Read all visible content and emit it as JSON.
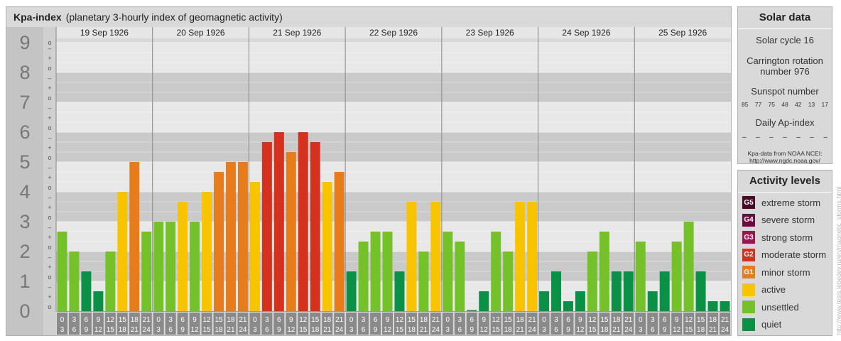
{
  "header": {
    "title": "Kpa-index",
    "subtitle": "(planetary 3-hourly index of geomagnetic activity)"
  },
  "chart_data": {
    "type": "bar",
    "title": "Kpa-index",
    "subtitle": "(planetary 3-hourly index of geomagnetic activity)",
    "ylim": [
      0,
      9
    ],
    "y_ticks": [
      "0",
      "1",
      "2",
      "3",
      "4",
      "5",
      "6",
      "7",
      "8",
      "9"
    ],
    "minor_ticks": [
      "o",
      "+",
      "–"
    ],
    "days": [
      "19 Sep 1926",
      "20 Sep 1926",
      "21 Sep 1926",
      "22 Sep 1926",
      "23 Sep 1926",
      "24 Sep 1926",
      "25 Sep 1926"
    ],
    "intervals": [
      [
        "0",
        "3"
      ],
      [
        "3",
        "6"
      ],
      [
        "6",
        "9"
      ],
      [
        "9",
        "12"
      ],
      [
        "12",
        "15"
      ],
      [
        "15",
        "18"
      ],
      [
        "18",
        "21"
      ],
      [
        "21",
        "24"
      ]
    ],
    "values": [
      [
        2.667,
        2.0,
        1.333,
        0.667,
        2.0,
        4.0,
        5.0,
        2.667
      ],
      [
        3.0,
        3.0,
        3.667,
        3.0,
        4.0,
        4.667,
        5.0,
        5.0
      ],
      [
        4.333,
        5.667,
        6.0,
        5.333,
        6.0,
        5.667,
        4.333,
        4.667
      ],
      [
        1.333,
        2.333,
        2.667,
        2.667,
        1.333,
        3.667,
        2.0,
        3.667
      ],
      [
        2.667,
        2.333,
        0.0,
        0.667,
        2.667,
        2.0,
        3.667,
        3.667
      ],
      [
        0.667,
        1.333,
        0.333,
        0.667,
        2.0,
        2.667,
        1.333,
        1.333
      ],
      [
        2.333,
        0.667,
        1.333,
        2.333,
        3.0,
        1.333,
        0.333,
        0.333
      ]
    ],
    "colors": {
      "quiet": "#0a9146",
      "unsettled": "#74c12a",
      "active": "#f8c400",
      "minor_storm": "#e67c1b",
      "moderate_storm": "#d5311f",
      "strong_storm": "#a1134b",
      "severe_storm": "#6b0c41",
      "extreme_storm": "#4a0a24"
    },
    "grid": true
  },
  "solar": {
    "title": "Solar data",
    "cycle": "Solar cycle 16",
    "carrington_line1": "Carrington rotation",
    "carrington_line2": "number 976",
    "sunspot_title": "Sunspot number",
    "sunspots": [
      "85",
      "77",
      "75",
      "48",
      "42",
      "13",
      "17"
    ],
    "ap_title": "Daily Ap-index",
    "ap_values": [
      "–",
      "–",
      "–",
      "–",
      "–",
      "–",
      "–"
    ],
    "source_line1": "Kpa-data from NOAA NCEI:",
    "source_line2": "http://www.ngdc.noaa.gov/"
  },
  "activity": {
    "title": "Activity levels",
    "levels": [
      {
        "code": "G5",
        "label": "extreme storm",
        "color": "#4a0a24"
      },
      {
        "code": "G4",
        "label": "severe storm",
        "color": "#6b0c41"
      },
      {
        "code": "G3",
        "label": "strong storm",
        "color": "#a1134b"
      },
      {
        "code": "G2",
        "label": "moderate storm",
        "color": "#d5311f"
      },
      {
        "code": "G1",
        "label": "minor storm",
        "color": "#e67c1b"
      },
      {
        "code": "",
        "label": "active",
        "color": "#f8c400"
      },
      {
        "code": "",
        "label": "unsettled",
        "color": "#74c12a"
      },
      {
        "code": "",
        "label": "quiet",
        "color": "#0a9146"
      }
    ]
  },
  "watermark": "http://www.tesis.lebedev.ru/en/magnetic_storms.html"
}
